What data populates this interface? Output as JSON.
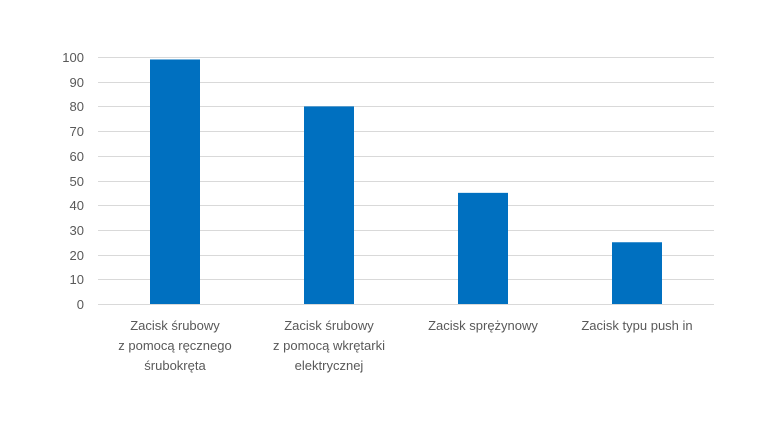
{
  "chart_data": {
    "type": "bar",
    "categories": [
      [
        "Zacisk śrubowy",
        "z pomocą ręcznego",
        "śrubokręta"
      ],
      [
        "Zacisk śrubowy",
        "z pomocą wkrętarki",
        "elektrycznej"
      ],
      [
        "Zacisk sprężynowy"
      ],
      [
        "Zacisk typu push in"
      ]
    ],
    "values": [
      99,
      80,
      45,
      25
    ],
    "ylim": [
      0,
      100
    ],
    "yticks": [
      0,
      10,
      20,
      30,
      40,
      50,
      60,
      70,
      80,
      90,
      100
    ],
    "grid": true,
    "legend": "none",
    "title": "",
    "xlabel": "",
    "ylabel": "",
    "colors": {
      "bar": "#0070C0",
      "grid": "#D9D9D9",
      "text": "#595959"
    }
  }
}
